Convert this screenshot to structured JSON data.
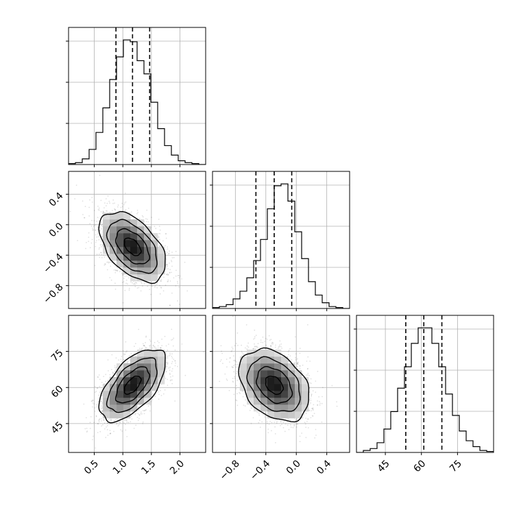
{
  "chart_data": {
    "type": "corner",
    "grid": true,
    "title": "",
    "parameters": [
      {
        "index": 0,
        "range": [
          0.05,
          2.45
        ],
        "ticks": [
          0.5,
          1.0,
          1.5,
          2.0
        ],
        "tick_labels": [
          "0.5",
          "1.0",
          "1.5",
          "2.0"
        ]
      },
      {
        "index": 1,
        "range": [
          -1.1,
          0.7
        ],
        "ticks": [
          -0.8,
          -0.4,
          0.0,
          0.4
        ],
        "tick_labels": [
          "−0.8",
          "−0.4",
          "0.0",
          "0.4"
        ]
      },
      {
        "index": 2,
        "range": [
          33,
          90
        ],
        "ticks": [
          45,
          60,
          75
        ],
        "tick_labels": [
          "45",
          "60",
          "75"
        ]
      }
    ],
    "histograms": [
      {
        "param": 0,
        "bin_edges": [
          0.05,
          0.17,
          0.29,
          0.41,
          0.53,
          0.65,
          0.77,
          0.89,
          1.01,
          1.13,
          1.25,
          1.37,
          1.49,
          1.61,
          1.73,
          1.85,
          1.97,
          2.09,
          2.21,
          2.33,
          2.45
        ],
        "counts": [
          0.5,
          1,
          3,
          8,
          17,
          30,
          45,
          57,
          66,
          65,
          55,
          48,
          33,
          19,
          10,
          5,
          2,
          1,
          0.5,
          0
        ],
        "quantiles": [
          0.88,
          1.17,
          1.47
        ]
      },
      {
        "param": 1,
        "bin_edges": [
          -1.1,
          -1.01,
          -0.92,
          -0.83,
          -0.74,
          -0.65,
          -0.56,
          -0.47,
          -0.38,
          -0.29,
          -0.2,
          -0.11,
          -0.02,
          0.07,
          0.16,
          0.25,
          0.34,
          0.43,
          0.52,
          0.61,
          0.7
        ],
        "counts": [
          0.5,
          1,
          2,
          5,
          9,
          16,
          25,
          36,
          52,
          64,
          65,
          56,
          40,
          26,
          14,
          7,
          3,
          1,
          0.5,
          0
        ],
        "quantiles": [
          -0.53,
          -0.29,
          -0.06
        ]
      },
      {
        "param": 2,
        "bin_edges": [
          33,
          35.85,
          38.7,
          41.55,
          44.4,
          47.25,
          50.1,
          52.95,
          55.8,
          58.65,
          61.5,
          64.35,
          67.2,
          70.05,
          72.9,
          75.75,
          78.6,
          81.45,
          84.3,
          87.15,
          90
        ],
        "counts": [
          0,
          1,
          2,
          5,
          12,
          21,
          33,
          44,
          56,
          64,
          64,
          56,
          44,
          30,
          19,
          11,
          6,
          3,
          1,
          0.5
        ],
        "quantiles": [
          53.5,
          61.0,
          68.5
        ]
      }
    ],
    "pairs": [
      {
        "x_param": 0,
        "y_param": 1,
        "center": [
          1.17,
          -0.29
        ],
        "sd": [
          0.29,
          0.23
        ],
        "rho": -0.5
      },
      {
        "x_param": 0,
        "y_param": 2,
        "center": [
          1.17,
          61.0
        ],
        "sd": [
          0.29,
          7.5
        ],
        "rho": 0.6
      },
      {
        "x_param": 1,
        "y_param": 2,
        "center": [
          -0.29,
          61.0
        ],
        "sd": [
          0.23,
          7.5
        ],
        "rho": -0.35
      }
    ],
    "contour_levels_sigma": [
      0.5,
      1.0,
      1.5,
      2.0
    ]
  }
}
